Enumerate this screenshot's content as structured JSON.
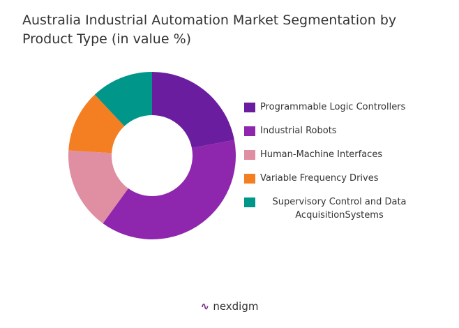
{
  "chart_data": {
    "type": "donut",
    "title": "Australia Industrial Automation Market Segmentation by Product Type (in value %)",
    "categories": [
      "Programmable Logic Controllers",
      "Industrial Robots",
      "Human-Machine Interfaces",
      "Variable Frequency Drives",
      "Supervisory Control and Data AcquisitionSystems"
    ],
    "values": [
      22,
      38,
      16,
      12,
      12
    ],
    "colors": [
      "#6a1d9e",
      "#8e27ad",
      "#e08ea2",
      "#f47e22",
      "#00968a"
    ],
    "legend": "right"
  },
  "brand": "nexdigm"
}
